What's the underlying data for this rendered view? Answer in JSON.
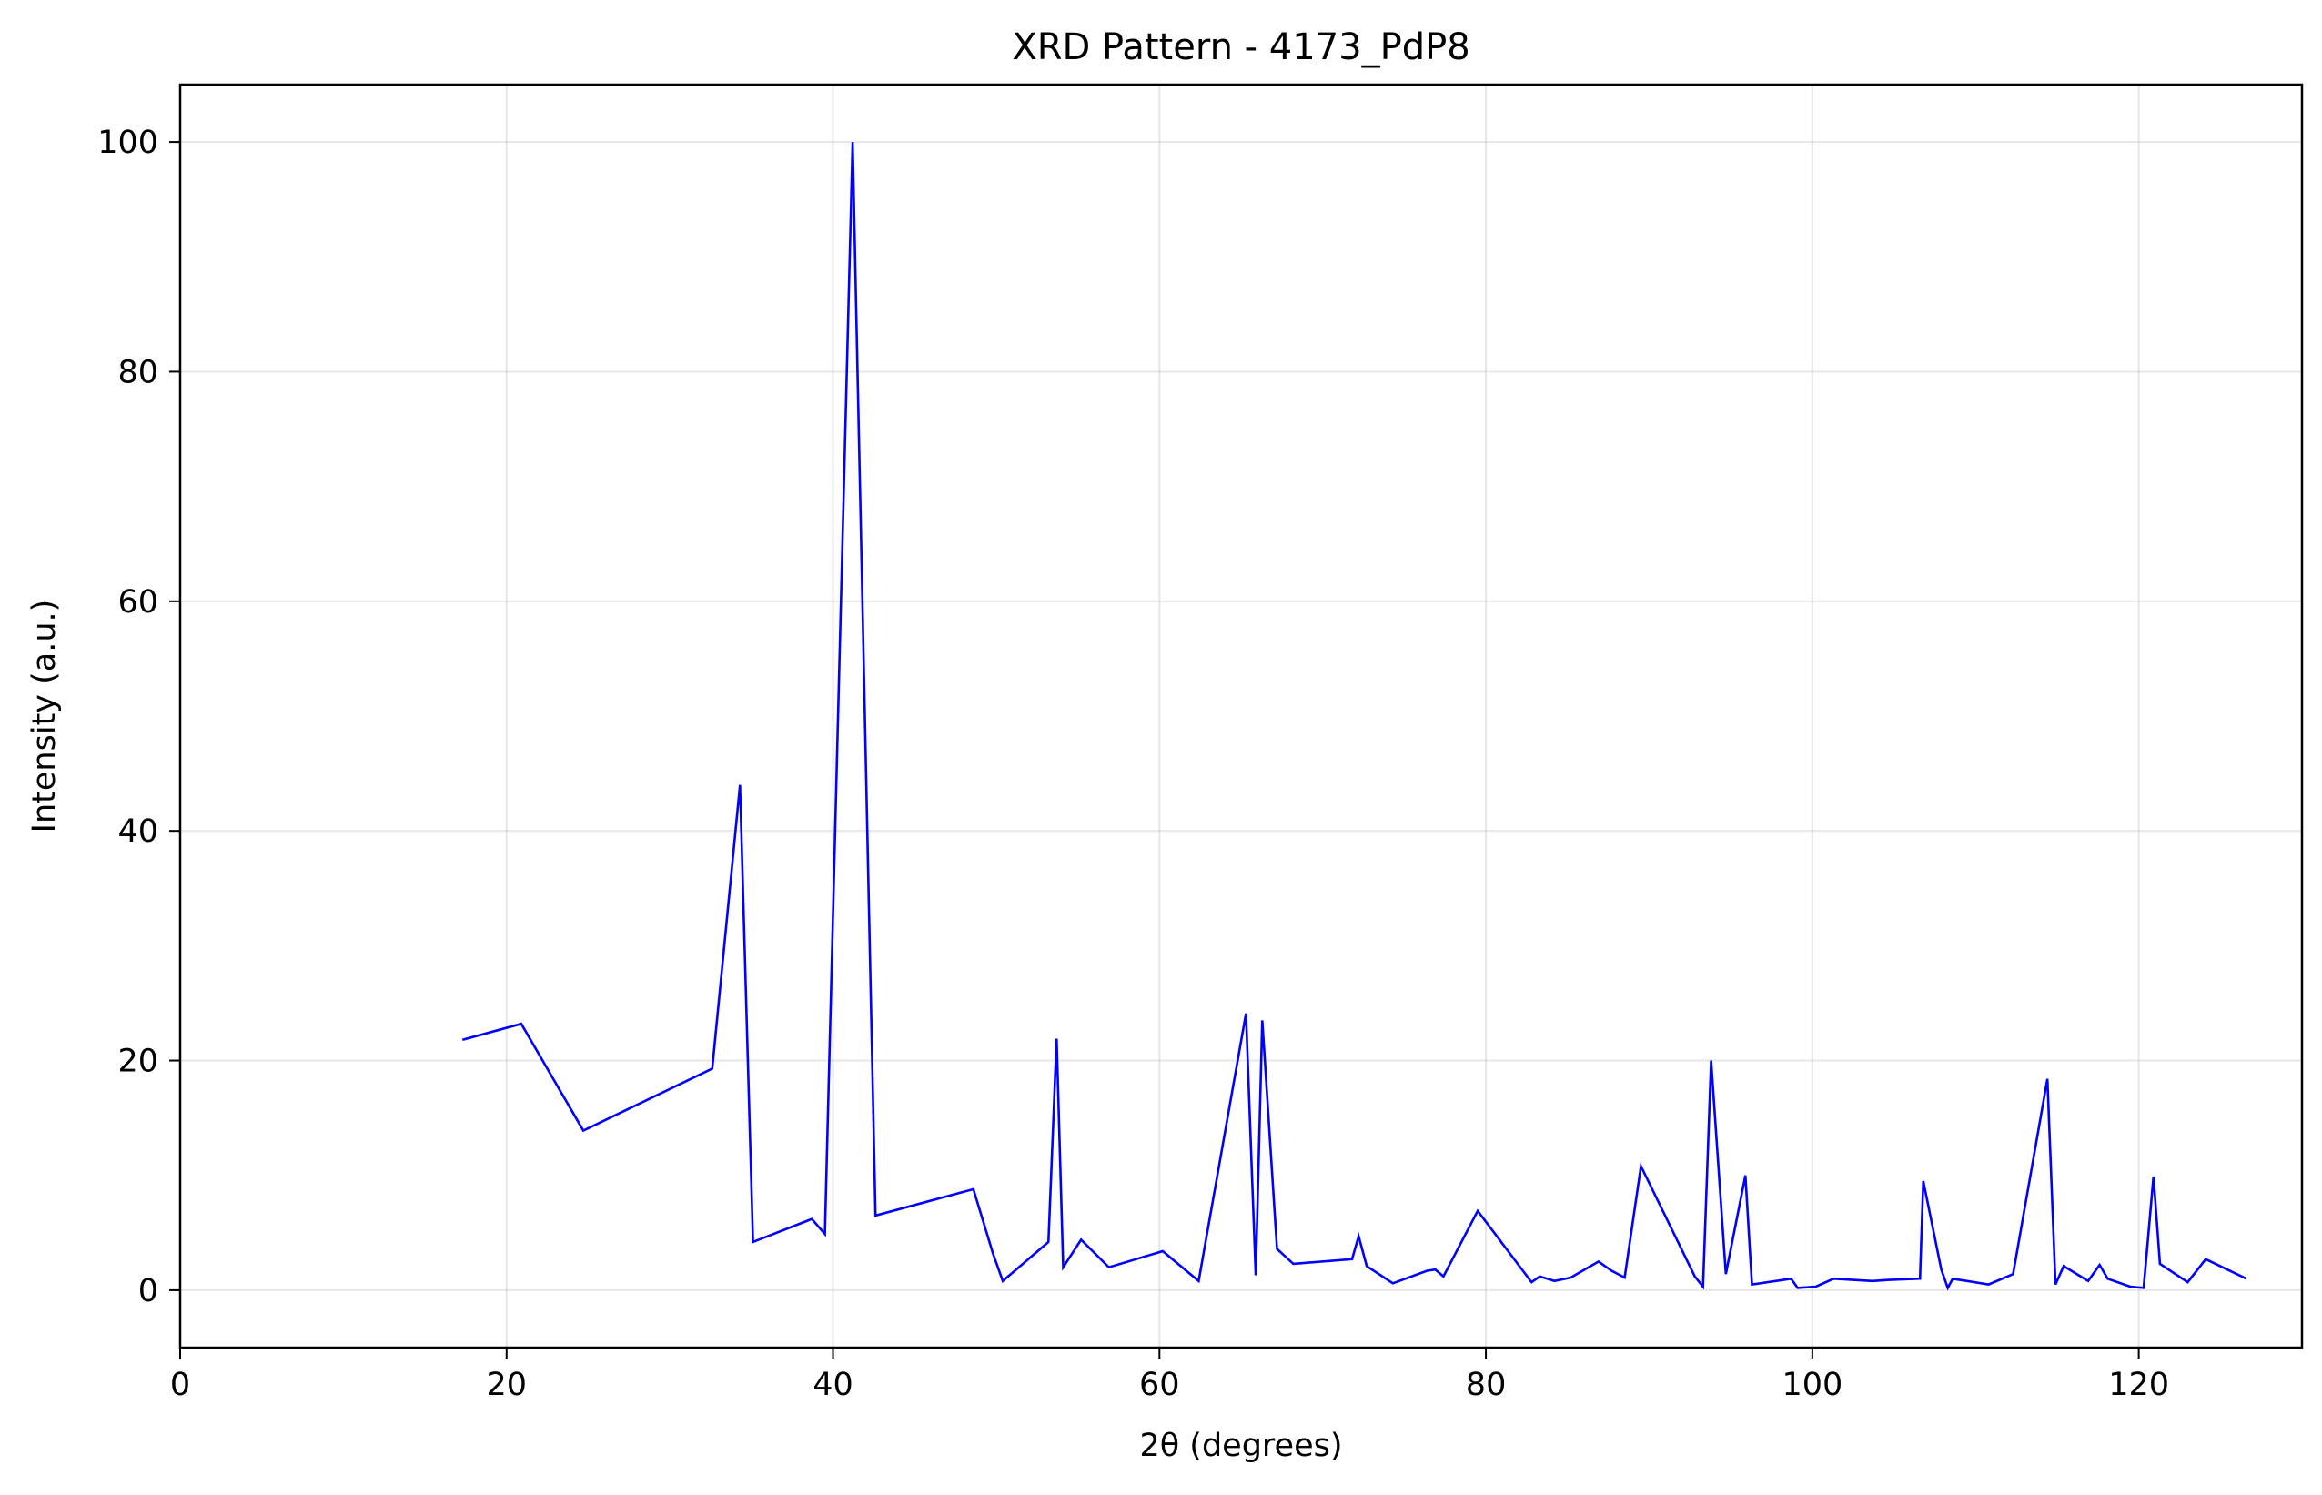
{
  "chart_data": {
    "type": "line",
    "title": "XRD Pattern - 4173_PdP8",
    "xlabel": "2θ (degrees)",
    "ylabel": "Intensity (a.u.)",
    "xlim": [
      0,
      130
    ],
    "ylim": [
      -5,
      105
    ],
    "xticks": [
      0,
      20,
      40,
      60,
      80,
      100,
      120
    ],
    "yticks": [
      0,
      20,
      40,
      60,
      80,
      100
    ],
    "grid": true,
    "line_color": "#0000ff",
    "series": [
      {
        "x": [
          17.3,
          20.9,
          24.7,
          32.6,
          34.3,
          35.1,
          38.7,
          39.5,
          41.2,
          42.6,
          48.6,
          49.8,
          50.4,
          53.2,
          53.7,
          54.1,
          55.2,
          56.9,
          60.2,
          62.4,
          65.3,
          65.9,
          66.3,
          67.2,
          68.2,
          71.8,
          72.2,
          72.7,
          74.3,
          76.4,
          76.9,
          77.4,
          79.5,
          82.8,
          83.3,
          84.2,
          85.2,
          86.9,
          87.7,
          88.5,
          89.5,
          92.8,
          93.3,
          93.8,
          94.7,
          95.9,
          96.3,
          98.7,
          99.1,
          100.2,
          101.3,
          103.7,
          104.7,
          106.6,
          106.8,
          107.9,
          108.3,
          108.6,
          110.8,
          112.3,
          114.4,
          114.9,
          115.4,
          116.9,
          117.6,
          118.1,
          119.5,
          120.3,
          120.9,
          121.3,
          123.0,
          124.1,
          126.6
        ],
        "y": [
          21.8,
          23.2,
          13.9,
          19.3,
          44.0,
          4.2,
          6.2,
          4.9,
          100.0,
          6.5,
          8.8,
          3.2,
          0.8,
          4.2,
          21.9,
          2.0,
          4.4,
          2.0,
          3.4,
          0.8,
          24.1,
          1.3,
          23.5,
          3.6,
          2.3,
          2.7,
          4.7,
          2.1,
          0.6,
          1.7,
          1.8,
          1.2,
          6.9,
          0.7,
          1.2,
          0.8,
          1.1,
          2.5,
          1.7,
          1.1,
          10.8,
          1.2,
          0.3,
          20.0,
          1.4,
          10.0,
          0.5,
          1.0,
          0.2,
          0.3,
          1.0,
          0.8,
          0.9,
          1.0,
          9.5,
          1.8,
          0.2,
          1.0,
          0.5,
          1.4,
          18.4,
          0.5,
          2.1,
          0.8,
          2.2,
          1.0,
          0.3,
          0.2,
          9.9,
          2.3,
          0.7,
          2.7,
          1.0
        ]
      }
    ]
  }
}
